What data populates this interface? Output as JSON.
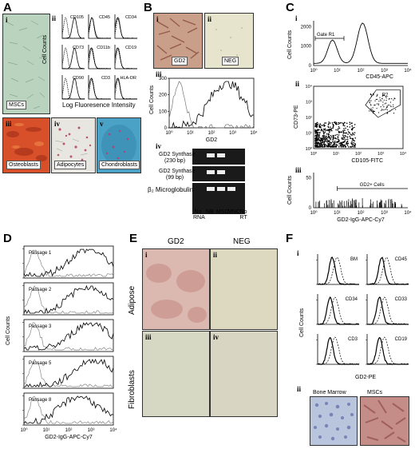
{
  "panels": {
    "A": {
      "label": "A",
      "subpanels": {
        "i": {
          "numeral": "i",
          "caption": "MSCs"
        },
        "ii": {
          "numeral": "ii",
          "markers": [
            "CD105",
            "CD45",
            "CD34",
            "CD73",
            "CD11b",
            "CD19",
            "CD90",
            "CD3",
            "HLA-DR"
          ],
          "ylabel": "Cell Counts",
          "xlabel": "Log Fluoresence Intensity"
        },
        "iii": {
          "numeral": "iii",
          "caption": "Osteoblasts"
        },
        "iv": {
          "numeral": "iv",
          "caption": "Adipocytes"
        },
        "v": {
          "numeral": "v",
          "caption": "Chondroblasts"
        }
      }
    },
    "B": {
      "label": "B",
      "i": {
        "numeral": "i",
        "caption": "GD2"
      },
      "ii": {
        "numeral": "ii",
        "caption": "NEG"
      },
      "iii": {
        "numeral": "iii",
        "ylabel": "Cell Counts",
        "xlabel": "GD2",
        "yticks": [
          "0",
          "100",
          "200",
          "300"
        ],
        "xticks": [
          "10⁰",
          "10¹",
          "10²",
          "10³",
          "10⁴"
        ]
      },
      "iv": {
        "numeral": "iv",
        "rows": [
          "GD2 Synthase",
          "(230 bp)",
          "GD2 Synthase",
          "(99 bp)",
          "β₂ Microglobulin"
        ],
        "lanes": [
          "No RNA",
          "NB",
          "MSC",
          "MNC",
          "No RT"
        ]
      }
    },
    "C": {
      "label": "C",
      "i": {
        "numeral": "i",
        "ylabel": "Cell Counts",
        "xlabel": "CD45-APC",
        "gate": "Gate R1",
        "yticks": [
          "0",
          "1000",
          "2000"
        ],
        "xticks": [
          "10⁰",
          "10¹",
          "10²",
          "10³",
          "10⁴"
        ]
      },
      "ii": {
        "numeral": "ii",
        "ylabel": "CD73-PE",
        "xlabel": "CD105-FITC",
        "gate": "R2",
        "xticks": [
          "10⁰",
          "10¹",
          "10²",
          "10³",
          "10⁴"
        ],
        "yticks": [
          "10⁰",
          "10¹",
          "10²",
          "10³",
          "10⁴"
        ]
      },
      "iii": {
        "numeral": "iii",
        "ylabel": "Cell Counts",
        "xlabel": "GD2-IgG-APC-Cy7",
        "gate": "GD2+ Cells",
        "yticks": [
          "0",
          "50"
        ],
        "xticks": [
          "10⁰",
          "10¹",
          "10²",
          "10³",
          "10⁴"
        ]
      }
    },
    "D": {
      "label": "D",
      "passages": [
        "Passage 1",
        "Passage 2",
        "Passage 3",
        "Passage 5",
        "Passage 8"
      ],
      "ylabel": "Cell Counts",
      "xlabel": "GD2-IgG-APC-Cy7",
      "xticks": [
        "10⁰",
        "10¹",
        "10²",
        "10³",
        "10⁴"
      ]
    },
    "E": {
      "label": "E",
      "col_headers": [
        "GD2",
        "NEG"
      ],
      "row_headers": [
        "Adipose",
        "Fibroblasts"
      ],
      "numerals": [
        "i",
        "ii",
        "iii",
        "iv"
      ]
    },
    "F": {
      "label": "F",
      "i": {
        "numeral": "i",
        "markers": [
          "BM",
          "CD45",
          "CD34",
          "CD33",
          "CD3",
          "CD19"
        ],
        "ylabel": "Cell Counts",
        "xlabel": "GD2-PE"
      },
      "ii": {
        "numeral": "ii",
        "captions": [
          "Bone Marrow",
          "MSCs"
        ]
      }
    }
  },
  "colors": {
    "msc_bg": "#b9d3bf",
    "osteo": "#d8502a",
    "adipo_bg": "#e8e6e0",
    "chondro": "#4aa3c6",
    "gd2_stain": "#b98372",
    "neg_bg": "#e6e4cc",
    "e_gd2": "#dcb9b0",
    "e_neg": "#dcd9c0",
    "bm_bg": "#b9c4dd",
    "msc_stain": "#c58d88"
  }
}
